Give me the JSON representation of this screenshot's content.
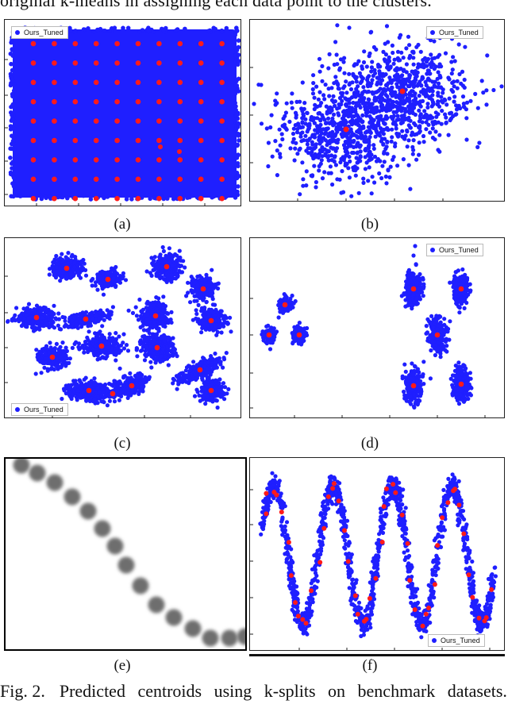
{
  "header": {
    "text_top": "original k-means in assigning each data point to the clusters."
  },
  "colors": {
    "points": "#1f1fff",
    "centroids": "#ff1a1a",
    "blur": "#6e6e6e"
  },
  "legend_label": "Ours_Tuned",
  "panels": [
    {
      "id": "a",
      "label": "(a)"
    },
    {
      "id": "b",
      "label": "(b)"
    },
    {
      "id": "c",
      "label": "(c)"
    },
    {
      "id": "d",
      "label": "(d)"
    },
    {
      "id": "e",
      "label": "(e)"
    },
    {
      "id": "f",
      "label": "(f)"
    }
  ],
  "caption": {
    "fig": "Fig. 2.",
    "text": "Predicted centroids using k-splits on benchmark datasets."
  }
}
